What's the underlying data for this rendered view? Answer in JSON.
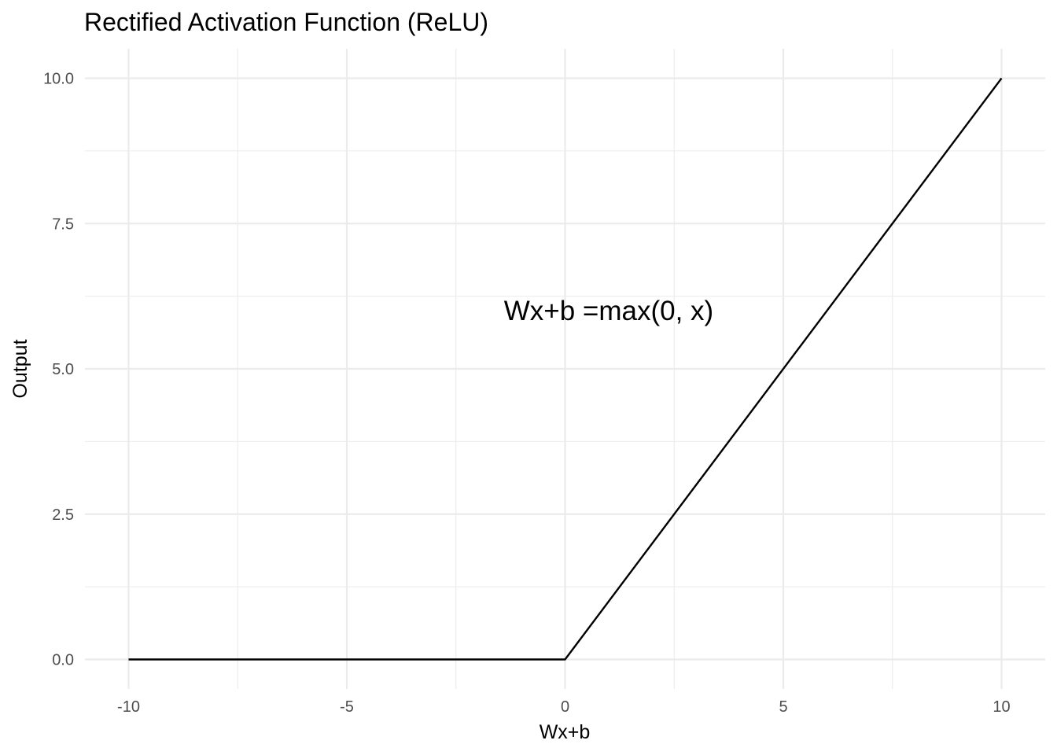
{
  "chart_data": {
    "type": "line",
    "title": "Rectified Activation Function (ReLU)",
    "xlabel": "Wx+b",
    "ylabel": "Output",
    "xlim": [
      -10,
      10
    ],
    "ylim": [
      0,
      10
    ],
    "x_ticks": [
      -10,
      -5,
      0,
      5,
      10
    ],
    "x_tick_labels": [
      "-10",
      "-5",
      "0",
      "5",
      "10"
    ],
    "y_ticks": [
      0,
      2.5,
      5,
      7.5,
      10
    ],
    "y_tick_labels": [
      "0.0",
      "2.5",
      "5.0",
      "7.5",
      "10.0"
    ],
    "x_minor_ticks": [
      -7.5,
      -2.5,
      2.5,
      7.5
    ],
    "y_minor_ticks": [
      1.25,
      3.75,
      6.25,
      8.75
    ],
    "grid": true,
    "legend": "none",
    "series": [
      {
        "color": "#000000",
        "x": [
          -10,
          0,
          10
        ],
        "y": [
          0,
          0,
          10
        ]
      }
    ],
    "annotations": [
      {
        "text": "Wx+b =max(0, x)",
        "x": 1,
        "y": 6
      }
    ]
  }
}
